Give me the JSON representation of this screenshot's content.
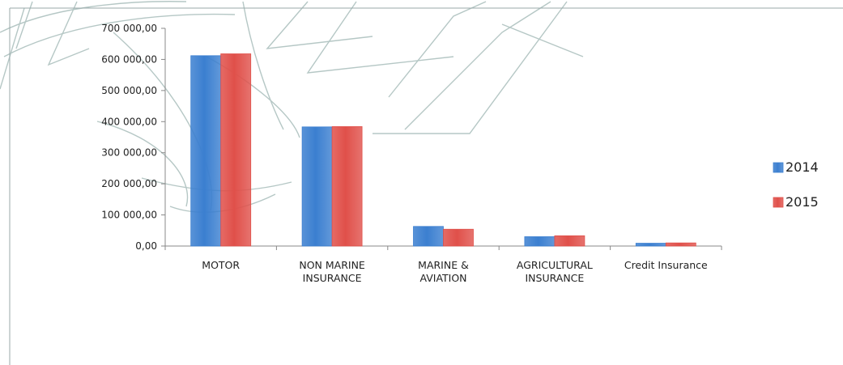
{
  "chart_data": {
    "type": "bar",
    "categories": [
      [
        "MOTOR"
      ],
      [
        "NON MARINE",
        "INSURANCE"
      ],
      [
        "MARINE &",
        "AVIATION"
      ],
      [
        "AGRICULTURAL",
        "INSURANCE"
      ],
      [
        "Credit Insurance"
      ]
    ],
    "series": [
      {
        "name": "2014",
        "color": "#3b7fd0",
        "values": [
          612000,
          383000,
          63000,
          30000,
          9000
        ]
      },
      {
        "name": "2015",
        "color": "#e0504a",
        "values": [
          618000,
          384000,
          54000,
          33000,
          10000
        ]
      }
    ],
    "ylim": [
      0,
      700000
    ],
    "yticks": [
      "0,00",
      "100 000,00",
      "200 000,00",
      "300 000,00",
      "400 000,00",
      "500 000,00",
      "600 000,00",
      "700 000,00"
    ],
    "grid": false,
    "legend_position": "right"
  }
}
